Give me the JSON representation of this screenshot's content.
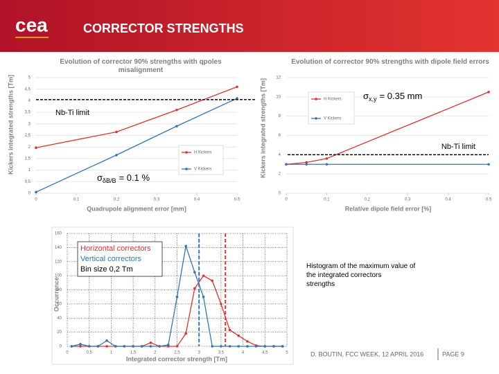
{
  "header": {
    "logo": "cea",
    "title": "CORRECTOR STRENGTHS"
  },
  "chart_data": [
    {
      "type": "line",
      "title": "Evolution of corrector 90% strengths with qpoles misalignment",
      "x_label": "Quadrupole alignment error [mm]",
      "y_label": "Kickers integrated strengths [Tm]",
      "x": [
        0,
        0.2,
        0.35,
        0.5
      ],
      "series": [
        {
          "name": "H Kickers",
          "color": "#e03030",
          "values": [
            1.97,
            2.65,
            3.6,
            4.6
          ]
        },
        {
          "name": "V Kickers",
          "color": "#2e75b6",
          "values": [
            0.05,
            1.65,
            2.9,
            4.1
          ]
        }
      ],
      "xlim": [
        0,
        0.5
      ],
      "xticks": [
        0,
        0.1,
        0.2,
        0.3,
        0.4,
        0.5
      ],
      "ylim": [
        0,
        5
      ],
      "yticks": [
        0,
        {
          "value": 0.5,
          "label": "0,5"
        },
        1,
        {
          "value": 1.5,
          "label": "1,5"
        },
        2,
        {
          "value": 2.5,
          "label": "2,5"
        },
        3,
        {
          "value": 3.5,
          "label": "3,5"
        },
        4,
        {
          "value": 4.5,
          "label": "4,5"
        },
        5
      ],
      "grid": true,
      "reference_lines": [
        {
          "value": 4.05,
          "label": "Nb-Ti limit"
        }
      ],
      "annotation": {
        "symbol": "σ",
        "subscript": "δB/B",
        "text": "= 0.1 %"
      }
    },
    {
      "type": "line",
      "title": "Evolution of corrector 90% strengths with dipole field errors",
      "x_label": "Relative dipole field error [%]",
      "y_label": "Kickers integrated strengths [Tm]",
      "x": [
        0,
        0.05,
        0.1,
        0.5
      ],
      "series": [
        {
          "name": "H Kickers",
          "color": "#e03030",
          "values": [
            3.0,
            3.2,
            3.6,
            10.5
          ]
        },
        {
          "name": "V Kickers",
          "color": "#2e75b6",
          "values": [
            3.0,
            3.0,
            3.0,
            3.0
          ]
        }
      ],
      "xlim": [
        0,
        0.5
      ],
      "xticks": [
        0,
        0.1,
        0.2,
        0.3,
        0.4,
        0.5
      ],
      "ylim": [
        0,
        12
      ],
      "yticks": [
        0,
        2,
        4,
        6,
        8,
        10,
        12
      ],
      "grid": true,
      "reference_lines": [
        {
          "value": 4,
          "label": "Nb-Ti limit"
        }
      ],
      "annotation": {
        "symbol": "σ",
        "subscript": "x,y",
        "text": "= 0.35 mm"
      }
    },
    {
      "type": "line",
      "x_label": "Integrated corrector strength [Tm]",
      "y_label": "Occurrence",
      "x": [
        0.1,
        0.3,
        0.5,
        0.7,
        0.9,
        1.1,
        1.3,
        1.5,
        1.7,
        1.9,
        2.1,
        2.3,
        2.5,
        2.7,
        2.9,
        3.1,
        3.3,
        3.5,
        3.7,
        3.9,
        4.1,
        4.3,
        4.5,
        4.7,
        4.9
      ],
      "series": [
        {
          "name": "Horizontal correctors",
          "color": "#e03030",
          "values": [
            0,
            0,
            0,
            0,
            0,
            0,
            0,
            0,
            0,
            5,
            0,
            0,
            0,
            18,
            82,
            100,
            93,
            60,
            23,
            15,
            7,
            1,
            0,
            0,
            0
          ]
        },
        {
          "name": "Vertical correctors",
          "color": "#2e75b6",
          "values": [
            0,
            3,
            0,
            0,
            8,
            0,
            0,
            0,
            0,
            0,
            0,
            2,
            70,
            142,
            105,
            70,
            0,
            0,
            0,
            0,
            0,
            0,
            0,
            0,
            0
          ]
        }
      ],
      "xlim": [
        0,
        5
      ],
      "xticks": [
        0,
        {
          "value": 0.5,
          "label": "0,5"
        },
        1,
        {
          "value": 1.5,
          "label": "1,5"
        },
        2,
        {
          "value": 2.5,
          "label": "2,5"
        },
        3,
        {
          "value": 3.5,
          "label": "3,5"
        },
        4,
        {
          "value": 4.5,
          "label": "4,5"
        },
        5
      ],
      "ylim": [
        0,
        160
      ],
      "yticks": [
        0,
        20,
        40,
        60,
        80,
        100,
        120,
        140,
        160
      ],
      "grid": true,
      "vertical_lines": [
        {
          "value": 3.0,
          "color": "#2e75b6"
        },
        {
          "value": 3.6,
          "color": "#e03030"
        }
      ],
      "note": "Bin size 0,2 Tm"
    }
  ],
  "caption": "Histogram of the maximum value of the integrated correctors strengths",
  "footer": {
    "text": "D. BOUTIN, FCC WEEK, 12 APRIL 2016",
    "page": "PAGE 9"
  }
}
